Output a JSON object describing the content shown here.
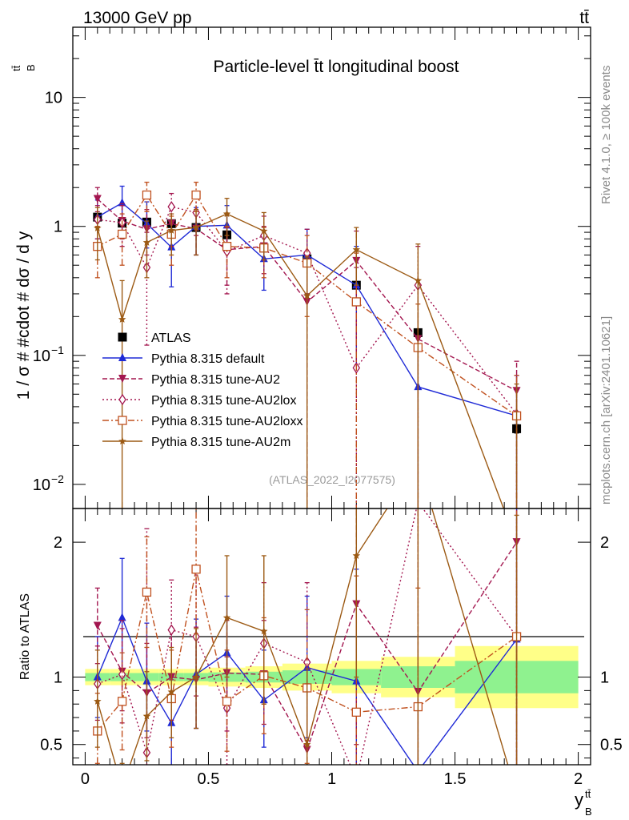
{
  "header": {
    "energy_label": "13000 GeV pp",
    "process_label": "tt̄"
  },
  "side_labels": {
    "rivet": "Rivet 4.1.0, ≥ 100k events",
    "mcplots": "mcplots.cern.ch [arXiv:2401.10621]"
  },
  "chart_data": [
    {
      "type": "line",
      "panel": "main",
      "title": "Particle-level t̄t longitudinal boost",
      "analysis_label": "(ATLAS_2022_I2077575)",
      "ylabel": "1 / σ # #cdot # dσ / d y",
      "ylabel_sup": "tt̄",
      "ylabel_sub": "B",
      "xlabel": "y",
      "xlabel_sup": "tt̄",
      "xlabel_sub": "B",
      "yscale": "log",
      "ylim": [
        0.0065,
        35
      ],
      "xlim": [
        -0.05,
        2.05
      ],
      "y_tick_labels": [
        {
          "value": 0.01,
          "base": "10",
          "exp": "−2"
        },
        {
          "value": 0.1,
          "base": "10",
          "exp": "−1"
        },
        {
          "value": 1,
          "base": "1",
          "exp": ""
        },
        {
          "value": 10,
          "base": "10",
          "exp": ""
        }
      ],
      "legend_position": "lower-left",
      "series": [
        {
          "name": "ATLAS",
          "color": "#000000",
          "marker": "square",
          "dash": "none",
          "x": [
            0.05,
            0.15,
            0.25,
            0.35,
            0.45,
            0.575,
            0.725,
            0.9,
            1.1,
            1.35,
            1.75
          ],
          "y": [
            1.18,
            1.06,
            1.08,
            1.05,
            0.98,
            0.86,
            0.68,
            0.56,
            0.35,
            0.15,
            0.027
          ],
          "err": [
            0.05,
            0.05,
            0.05,
            0.05,
            0.05,
            0.04,
            0.03,
            0.03,
            0.02,
            0.01,
            0.002
          ]
        },
        {
          "name": "Pythia 8.315 default",
          "color": "#1f2ad6",
          "marker": "triangle-up",
          "dash": "none",
          "x": [
            0.05,
            0.15,
            0.25,
            0.35,
            0.45,
            0.575,
            0.725,
            0.9,
            1.1,
            1.35,
            1.75
          ],
          "y": [
            1.18,
            1.52,
            1.05,
            0.69,
            1.0,
            1.02,
            0.56,
            0.6,
            0.35,
            0.057,
            0.034
          ],
          "ylow": [
            0.8,
            1.05,
            0.68,
            0.34,
            0.6,
            0.65,
            0.32,
            0.3,
            0.08,
            0.0001,
            0.0001
          ],
          "yhigh": [
            1.6,
            2.05,
            1.55,
            1.07,
            1.4,
            1.45,
            0.82,
            0.95,
            0.7,
            0.12,
            0.07
          ]
        },
        {
          "name": "Pythia 8.315 tune-AU2",
          "color": "#a3164f",
          "marker": "triangle-down",
          "dash": "6,3",
          "x": [
            0.05,
            0.15,
            0.25,
            0.35,
            0.45,
            0.575,
            0.725,
            0.9,
            1.1,
            1.35,
            1.75
          ],
          "y": [
            1.63,
            1.1,
            0.95,
            1.05,
            0.96,
            0.66,
            0.7,
            0.26,
            0.54,
            0.134,
            0.053
          ],
          "ylow": [
            1.3,
            0.8,
            0.6,
            0.7,
            0.6,
            0.35,
            0.43,
            0.0001,
            0.08,
            0.0001,
            0.0001
          ],
          "yhigh": [
            2.0,
            1.45,
            1.35,
            1.4,
            1.35,
            1.0,
            1.0,
            0.55,
            0.92,
            0.36,
            0.09
          ]
        },
        {
          "name": "Pythia 8.315 tune-AU2lox",
          "color": "#a3164f",
          "marker": "diamond",
          "dash": "2,3",
          "x": [
            0.05,
            0.15,
            0.25,
            0.35,
            0.45,
            0.575,
            0.725,
            0.9,
            1.1,
            1.35,
            1.75
          ],
          "y": [
            1.13,
            1.07,
            0.48,
            1.42,
            1.28,
            0.64,
            0.85,
            0.62,
            0.08,
            0.35,
            0.035
          ],
          "ylow": [
            0.8,
            0.7,
            0.12,
            1.05,
            0.85,
            0.3,
            0.55,
            0.3,
            0.0001,
            0.0001,
            0.0001
          ],
          "yhigh": [
            1.45,
            1.5,
            0.9,
            1.8,
            1.75,
            0.98,
            1.2,
            0.95,
            0.48,
            0.7,
            0.07
          ]
        },
        {
          "name": "Pythia 8.315 tune-AU2loxx",
          "color": "#c0511f",
          "marker": "square-open",
          "dash": "8,3,2,3",
          "x": [
            0.05,
            0.15,
            0.25,
            0.35,
            0.45,
            0.575,
            0.725,
            0.9,
            1.1,
            1.35,
            1.75
          ],
          "y": [
            0.7,
            0.87,
            1.75,
            0.87,
            1.75,
            0.7,
            0.68,
            0.52,
            0.26,
            0.115,
            0.034
          ],
          "ylow": [
            0.4,
            0.5,
            1.3,
            0.5,
            1.3,
            0.4,
            0.4,
            0.2,
            0.0001,
            0.0001,
            0.0001
          ],
          "yhigh": [
            1.0,
            1.25,
            2.2,
            1.2,
            2.2,
            1.0,
            0.98,
            0.85,
            0.62,
            0.25,
            0.07
          ]
        },
        {
          "name": "Pythia 8.315 tune-AU2m",
          "color": "#9c5a14",
          "marker": "star",
          "dash": "none",
          "x": [
            0.05,
            0.15,
            0.25,
            0.35,
            0.45,
            0.575,
            0.725,
            0.9,
            1.1,
            1.35,
            1.75
          ],
          "y": [
            0.97,
            0.19,
            0.75,
            0.93,
            0.98,
            1.25,
            0.92,
            0.29,
            0.66,
            0.38,
            0.0035
          ],
          "ylow": [
            0.55,
            0.0001,
            0.4,
            0.6,
            0.6,
            0.85,
            0.55,
            0.0001,
            0.35,
            0.0001,
            0.0001
          ],
          "yhigh": [
            1.4,
            0.38,
            1.1,
            1.25,
            1.35,
            1.65,
            1.28,
            0.58,
            0.98,
            0.73,
            0.06
          ]
        }
      ]
    },
    {
      "type": "line",
      "panel": "ratio",
      "ylabel": "Ratio to ATLAS",
      "ylim": [
        0.35,
        2.25
      ],
      "xlim": [
        -0.05,
        2.05
      ],
      "x_tick_labels": [
        {
          "value": 0,
          "label": "0"
        },
        {
          "value": 0.5,
          "label": "0.5"
        },
        {
          "value": 1,
          "label": "1"
        },
        {
          "value": 1.5,
          "label": "1.5"
        },
        {
          "value": 2,
          "label": "2"
        }
      ],
      "y_tick_labels": [
        {
          "value": 0.5,
          "label": "0.5"
        },
        {
          "value": 1,
          "label": "1"
        },
        {
          "value": 2,
          "label": "2"
        }
      ],
      "reference_bands": {
        "bin_edges": [
          0,
          0.1,
          0.2,
          0.3,
          0.4,
          0.5,
          0.65,
          0.8,
          1.0,
          1.2,
          1.5,
          2.0
        ],
        "inner_half_width": [
          0.03,
          0.03,
          0.03,
          0.03,
          0.03,
          0.035,
          0.04,
          0.05,
          0.06,
          0.08,
          0.12
        ],
        "outer_half_width": [
          0.06,
          0.06,
          0.06,
          0.06,
          0.06,
          0.07,
          0.08,
          0.1,
          0.12,
          0.15,
          0.23
        ]
      },
      "series": [
        {
          "name": "Pythia 8.315 default",
          "color": "#1f2ad6",
          "marker": "triangle-up",
          "dash": "none",
          "x": [
            0.05,
            0.15,
            0.25,
            0.35,
            0.45,
            0.575,
            0.725,
            0.9,
            1.1,
            1.35,
            1.75
          ],
          "y": [
            1.0,
            1.44,
            0.97,
            0.66,
            1.02,
            1.18,
            0.83,
            1.07,
            0.97,
            0.3,
            1.28
          ],
          "ylow": [
            0.7,
            1.0,
            0.6,
            0.3,
            0.62,
            0.75,
            0.48,
            0.55,
            0.25,
            0.0001,
            0.0001
          ],
          "yhigh": [
            1.3,
            1.88,
            1.4,
            1.0,
            1.43,
            1.6,
            1.2,
            1.6,
            1.8,
            0.9,
            2.6
          ]
        },
        {
          "name": "Pythia 8.315 tune-AU2",
          "color": "#a3164f",
          "marker": "triangle-down",
          "dash": "6,3",
          "x": [
            0.05,
            0.15,
            0.25,
            0.35,
            0.45,
            0.575,
            0.725,
            0.9,
            1.1,
            1.35,
            1.75
          ],
          "y": [
            1.38,
            1.04,
            0.88,
            1.0,
            0.98,
            1.03,
            1.02,
            0.46,
            1.54,
            0.89,
            2.0
          ],
          "ylow": [
            1.1,
            0.75,
            0.55,
            0.68,
            0.62,
            0.6,
            0.65,
            0.0001,
            0.22,
            0.0001,
            0.0001
          ],
          "yhigh": [
            1.66,
            1.36,
            1.25,
            1.35,
            1.37,
            1.42,
            1.42,
            0.95,
            2.6,
            2.4,
            2.6
          ]
        },
        {
          "name": "Pythia 8.315 tune-AU2lox",
          "color": "#a3164f",
          "marker": "diamond",
          "dash": "2,3",
          "x": [
            0.05,
            0.15,
            0.25,
            0.35,
            0.45,
            0.575,
            0.725,
            0.9,
            1.1,
            1.35,
            1.75
          ],
          "y": [
            0.95,
            1.02,
            0.44,
            1.35,
            1.3,
            0.77,
            1.25,
            1.11,
            0.24,
            2.3,
            1.3
          ],
          "ylow": [
            0.68,
            0.66,
            0.11,
            0.98,
            0.86,
            0.35,
            0.8,
            0.53,
            0.0001,
            0.0001,
            0.0001
          ],
          "yhigh": [
            1.23,
            1.42,
            2.1,
            1.72,
            1.78,
            1.15,
            1.7,
            1.7,
            0.5,
            2.6,
            2.6
          ]
        },
        {
          "name": "Pythia 8.315 tune-AU2loxx",
          "color": "#c0511f",
          "marker": "square-open",
          "dash": "8,3,2,3",
          "x": [
            0.05,
            0.15,
            0.25,
            0.35,
            0.45,
            0.575,
            0.725,
            0.9,
            1.1,
            1.35,
            1.75
          ],
          "y": [
            0.6,
            0.82,
            1.63,
            0.84,
            1.8,
            0.82,
            1.01,
            0.92,
            0.74,
            0.78,
            1.3
          ],
          "ylow": [
            0.36,
            0.46,
            1.22,
            0.48,
            1.32,
            0.45,
            0.58,
            0.36,
            0.0001,
            0.0001,
            0.0001
          ],
          "yhigh": [
            0.88,
            1.18,
            2.04,
            1.2,
            2.28,
            1.2,
            1.44,
            1.5,
            1.75,
            1.66,
            2.6
          ]
        },
        {
          "name": "Pythia 8.315 tune-AU2m",
          "color": "#9c5a14",
          "marker": "star",
          "dash": "none",
          "x": [
            0.05,
            0.15,
            0.25,
            0.35,
            0.45,
            0.575,
            0.725,
            0.9,
            1.1,
            1.35,
            1.75
          ],
          "y": [
            0.82,
            0.18,
            0.71,
            0.89,
            1.0,
            1.44,
            1.34,
            0.5,
            1.9,
            2.6,
            0.13
          ],
          "ylow": [
            0.48,
            0.0001,
            0.38,
            0.55,
            0.62,
            1.0,
            0.8,
            0.0001,
            1.0,
            0.0001,
            0.0001
          ],
          "yhigh": [
            1.2,
            0.36,
            1.04,
            1.22,
            1.36,
            1.9,
            1.9,
            1.06,
            2.6,
            2.6,
            2.2
          ]
        }
      ]
    }
  ]
}
